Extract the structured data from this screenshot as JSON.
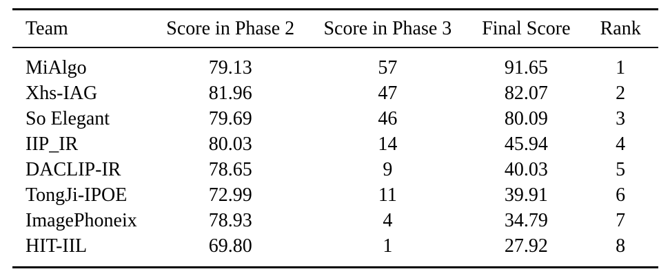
{
  "page": {
    "background_color": "#ffffff",
    "text_color": "#000000",
    "rule_color": "#000000"
  },
  "table": {
    "columns": [
      {
        "key": "team",
        "label": "Team",
        "align": "left"
      },
      {
        "key": "phase2",
        "label": "Score in Phase 2",
        "align": "center"
      },
      {
        "key": "phase3",
        "label": "Score in Phase 3",
        "align": "center"
      },
      {
        "key": "final",
        "label": "Final Score",
        "align": "center"
      },
      {
        "key": "rank",
        "label": "Rank",
        "align": "center"
      }
    ],
    "rows": [
      {
        "team": "MiAlgo",
        "phase2": "79.13",
        "phase3": "57",
        "final": "91.65",
        "rank": "1"
      },
      {
        "team": "Xhs-IAG",
        "phase2": "81.96",
        "phase3": "47",
        "final": "82.07",
        "rank": "2"
      },
      {
        "team": "So Elegant",
        "phase2": "79.69",
        "phase3": "46",
        "final": "80.09",
        "rank": "3"
      },
      {
        "team": "IIP_IR",
        "phase2": "80.03",
        "phase3": "14",
        "final": "45.94",
        "rank": "4"
      },
      {
        "team": "DACLIP-IR",
        "phase2": "78.65",
        "phase3": "9",
        "final": "40.03",
        "rank": "5"
      },
      {
        "team": "TongJi-IPOE",
        "phase2": "72.99",
        "phase3": "11",
        "final": "39.91",
        "rank": "6"
      },
      {
        "team": "ImagePhoneix",
        "phase2": "78.93",
        "phase3": "4",
        "final": "34.79",
        "rank": "7"
      },
      {
        "team": "HIT-IIL",
        "phase2": "69.80",
        "phase3": "1",
        "final": "27.92",
        "rank": "8"
      }
    ]
  }
}
